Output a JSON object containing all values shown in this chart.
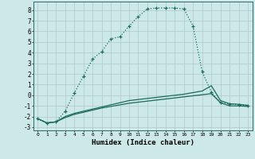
{
  "xlabel": "Humidex (Indice chaleur)",
  "background_color": "#cce8e8",
  "grid_color": "#b0c8c8",
  "line_color": "#1a6b5a",
  "xlim": [
    -0.5,
    23.5
  ],
  "ylim": [
    -3.3,
    8.8
  ],
  "xticks": [
    0,
    1,
    2,
    3,
    4,
    5,
    6,
    7,
    8,
    9,
    10,
    11,
    12,
    13,
    14,
    15,
    16,
    17,
    18,
    19,
    20,
    21,
    22,
    23
  ],
  "yticks": [
    -3,
    -2,
    -1,
    0,
    1,
    2,
    3,
    4,
    5,
    6,
    7,
    8
  ],
  "series1_x": [
    0,
    1,
    2,
    3,
    4,
    5,
    6,
    7,
    8,
    9,
    10,
    11,
    12,
    13,
    14,
    15,
    16,
    17,
    18,
    19,
    20,
    21,
    22,
    23
  ],
  "series1_y": [
    -2.2,
    -2.6,
    -2.5,
    -1.5,
    0.2,
    1.8,
    3.4,
    4.1,
    5.3,
    5.5,
    6.5,
    7.4,
    8.1,
    8.2,
    8.2,
    8.2,
    8.1,
    6.5,
    2.2,
    0.3,
    -0.7,
    -0.8,
    -0.9,
    -0.95
  ],
  "series2_x": [
    0,
    1,
    2,
    3,
    4,
    5,
    6,
    7,
    8,
    9,
    10,
    11,
    12,
    13,
    14,
    15,
    16,
    17,
    18,
    19,
    20,
    21,
    22,
    23
  ],
  "series2_y": [
    -2.2,
    -2.6,
    -2.5,
    -2.0,
    -1.7,
    -1.5,
    -1.3,
    -1.1,
    -0.9,
    -0.7,
    -0.5,
    -0.4,
    -0.3,
    -0.2,
    -0.1,
    0.0,
    0.1,
    0.25,
    0.4,
    0.9,
    -0.5,
    -0.8,
    -0.85,
    -0.95
  ],
  "series3_x": [
    0,
    1,
    2,
    3,
    4,
    5,
    6,
    7,
    8,
    9,
    10,
    11,
    12,
    13,
    14,
    15,
    16,
    17,
    18,
    19,
    20,
    21,
    22,
    23
  ],
  "series3_y": [
    -2.2,
    -2.6,
    -2.5,
    -2.1,
    -1.8,
    -1.6,
    -1.4,
    -1.2,
    -1.05,
    -0.9,
    -0.75,
    -0.65,
    -0.55,
    -0.45,
    -0.35,
    -0.25,
    -0.15,
    -0.05,
    0.05,
    0.15,
    -0.7,
    -1.0,
    -1.0,
    -1.05
  ]
}
